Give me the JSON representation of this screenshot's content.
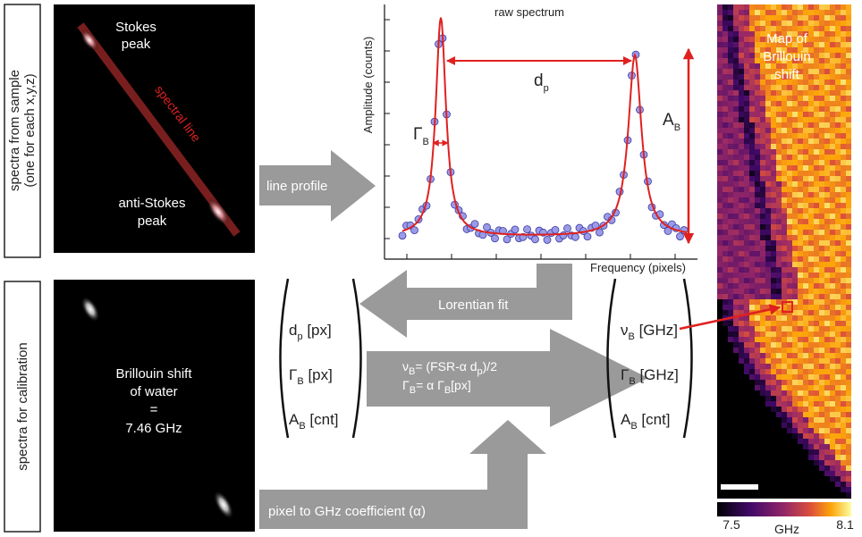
{
  "sample_panel": {
    "label_lines": [
      "spectra from sample",
      "(one for each x,y,z)"
    ],
    "peak_top": [
      "Stokes",
      "peak"
    ],
    "line_label": "spectral line",
    "peak_bottom": [
      "anti-Stokes",
      "peak"
    ]
  },
  "calibration_panel": {
    "label": "spectra for calibration",
    "text_lines": [
      "Brillouin shift",
      "of water",
      "=",
      "7.46 GHz"
    ]
  },
  "spectrum": {
    "title": "raw spectrum",
    "y_label": "Amplitude (counts)",
    "x_label": "Frequency (pixels)",
    "peak_distance": {
      "main": "d",
      "sub": "p"
    },
    "linewidth": {
      "main": "Γ",
      "sub": "B"
    },
    "amplitude": {
      "main": "A",
      "sub": "B"
    }
  },
  "arrows": {
    "line_profile": "line profile",
    "fit": "Lorentian fit",
    "coefficient": "pixel to GHz coefficient (α)"
  },
  "pixel_vector": [
    {
      "main": "d",
      "sub": "p",
      "unit": " [px]"
    },
    {
      "main": "Γ",
      "sub": "B",
      "unit": " [px]"
    },
    {
      "main": "A",
      "sub": "B",
      "unit": " [cnt]"
    }
  ],
  "conversion": [
    {
      "main": "ν",
      "sub": "B",
      "rest": "= (FSR-α d",
      "sub2": "p",
      "end": ")/2"
    },
    {
      "main": "Γ",
      "sub": "B",
      "rest": "= α Γ",
      "sub2": "B",
      "end": "[px]"
    }
  ],
  "ghz_vector": [
    {
      "main": "ν",
      "sub": "B",
      "unit": " [GHz]"
    },
    {
      "main": "Γ",
      "sub": "B",
      "unit": " [GHz]"
    },
    {
      "main": "A",
      "sub": "B",
      "unit": " [cnt]"
    }
  ],
  "map": {
    "title_lines": [
      "Map of",
      "Brillouin",
      "shift"
    ],
    "colorbar": {
      "min": 7.5,
      "unit": "GHz",
      "max": 8.1
    }
  }
}
